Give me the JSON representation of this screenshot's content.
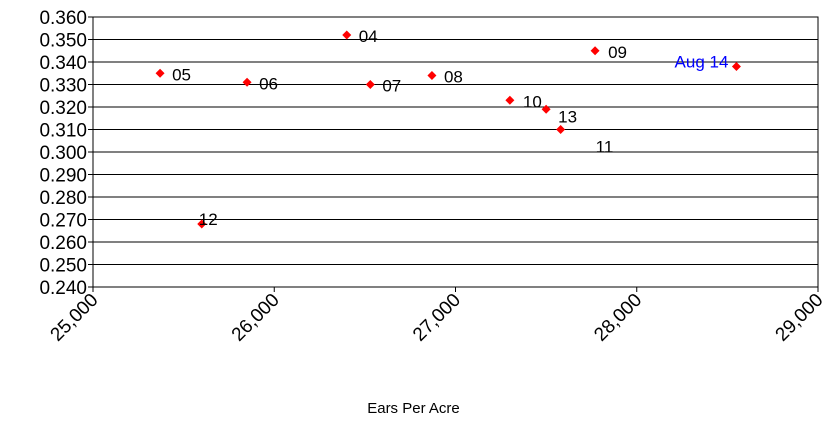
{
  "chart_data": {
    "type": "scatter",
    "title": "",
    "xlabel": "Ears Per Acre",
    "ylabel": "",
    "xlim": [
      25000,
      29000
    ],
    "ylim": [
      0.24,
      0.36
    ],
    "x_ticks": [
      "25,000",
      "26,000",
      "27,000",
      "28,000",
      "29,000"
    ],
    "y_ticks": [
      "0.240",
      "0.250",
      "0.260",
      "0.270",
      "0.280",
      "0.290",
      "0.300",
      "0.310",
      "0.320",
      "0.330",
      "0.340",
      "0.350",
      "0.360"
    ],
    "grid": "horizontal",
    "marker_color": "#ff0000",
    "points": [
      {
        "label": "04",
        "x": 26400,
        "y": 0.352,
        "label_color": "#000000"
      },
      {
        "label": "05",
        "x": 25370,
        "y": 0.335,
        "label_color": "#000000"
      },
      {
        "label": "06",
        "x": 25850,
        "y": 0.331,
        "label_color": "#000000"
      },
      {
        "label": "07",
        "x": 26530,
        "y": 0.33,
        "label_color": "#000000"
      },
      {
        "label": "08",
        "x": 26870,
        "y": 0.334,
        "label_color": "#000000"
      },
      {
        "label": "09",
        "x": 27770,
        "y": 0.345,
        "label_color": "#000000"
      },
      {
        "label": "10",
        "x": 27300,
        "y": 0.323,
        "label_color": "#000000"
      },
      {
        "label": "13",
        "x": 27500,
        "y": 0.319,
        "label_color": "#000000"
      },
      {
        "label": "11",
        "x": 27580,
        "y": 0.31,
        "label_color": "#000000"
      },
      {
        "label": "12",
        "x": 25600,
        "y": 0.268,
        "label_color": "#000000"
      },
      {
        "label": "Aug 14",
        "x": 28550,
        "y": 0.338,
        "label_color": "#0000ff"
      }
    ]
  }
}
